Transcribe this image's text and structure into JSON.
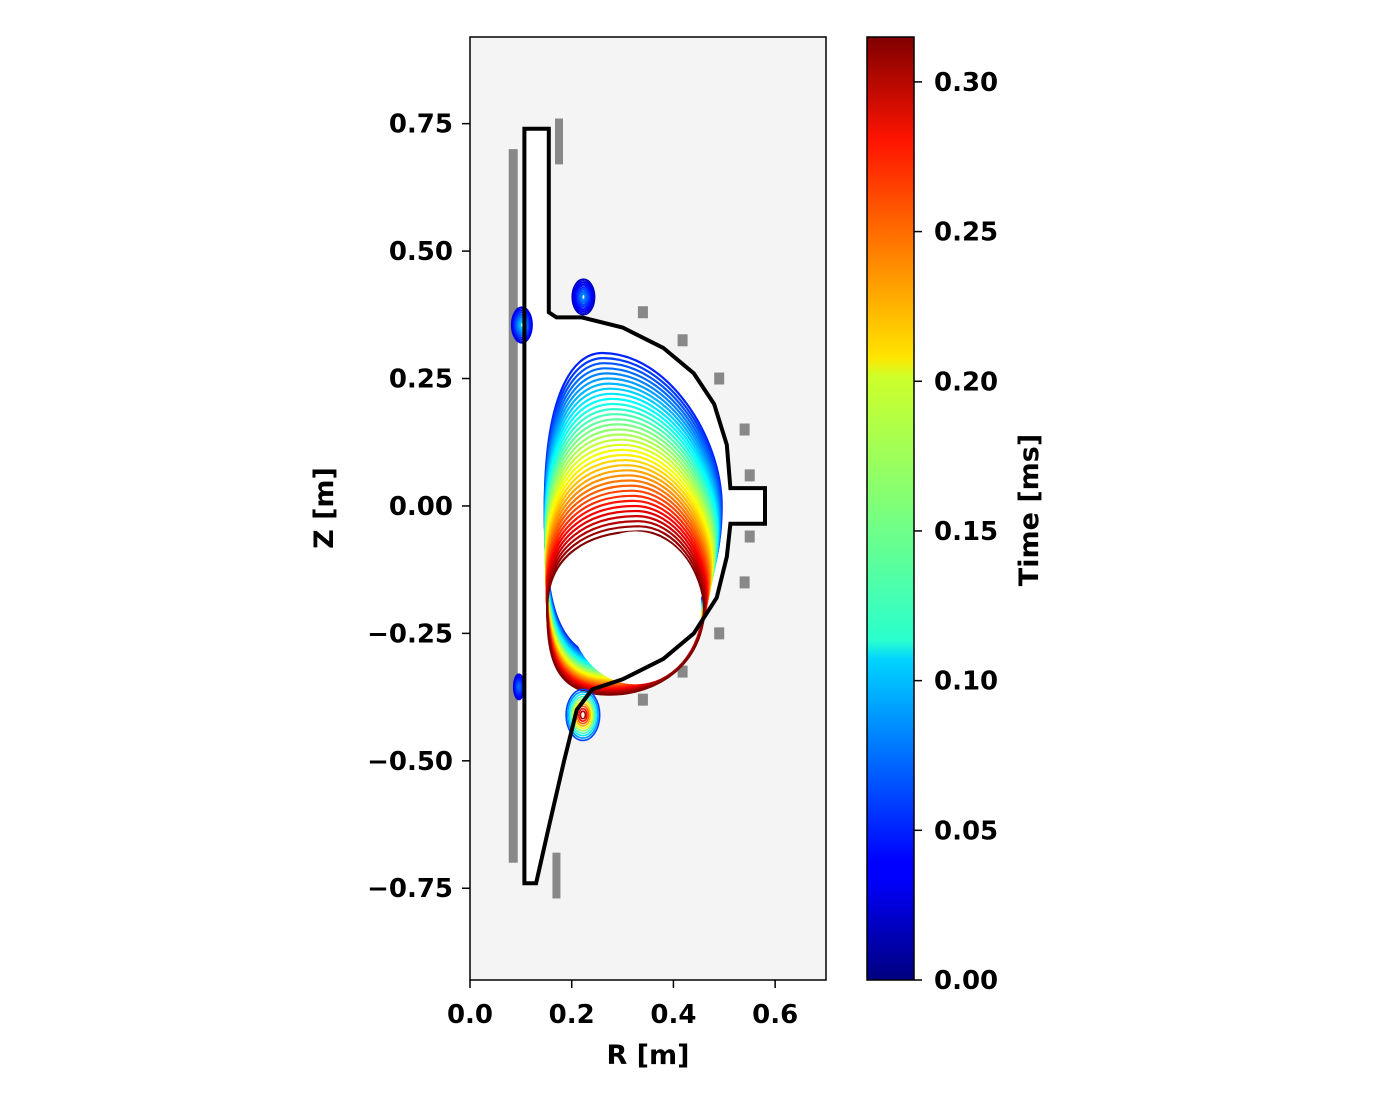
{
  "chart_data": {
    "type": "contour",
    "title": "",
    "xlabel": "R [m]",
    "ylabel": "Z [m]",
    "xlim": [
      0.0,
      0.7
    ],
    "ylim": [
      -0.93,
      0.92
    ],
    "xticks": [
      {
        "value": 0.0,
        "label": "0.0"
      },
      {
        "value": 0.2,
        "label": "0.2"
      },
      {
        "value": 0.4,
        "label": "0.4"
      },
      {
        "value": 0.6,
        "label": "0.6"
      }
    ],
    "yticks": [
      {
        "value": 0.75,
        "label": "0.75"
      },
      {
        "value": 0.5,
        "label": "0.50"
      },
      {
        "value": 0.25,
        "label": "0.25"
      },
      {
        "value": 0.0,
        "label": "0.00"
      },
      {
        "value": -0.25,
        "label": "−0.25"
      },
      {
        "value": -0.5,
        "label": "−0.50"
      },
      {
        "value": -0.75,
        "label": "−0.75"
      }
    ],
    "background_color": "#f4f4f4",
    "colorbar": {
      "label": "Time [ms]",
      "colormap": "jet",
      "range": [
        0.0,
        0.315
      ],
      "ticks": [
        {
          "value": 0.0,
          "label": "0.00"
        },
        {
          "value": 0.05,
          "label": "0.05"
        },
        {
          "value": 0.1,
          "label": "0.10"
        },
        {
          "value": 0.15,
          "label": "0.15"
        },
        {
          "value": 0.2,
          "label": "0.20"
        },
        {
          "value": 0.25,
          "label": "0.25"
        },
        {
          "value": 0.3,
          "label": "0.30"
        }
      ]
    },
    "vessel_wall": [
      [
        0.107,
        -0.74
      ],
      [
        0.107,
        0.74
      ],
      [
        0.155,
        0.74
      ],
      [
        0.155,
        0.38
      ],
      [
        0.17,
        0.37
      ],
      [
        0.22,
        0.37
      ],
      [
        0.3,
        0.35
      ],
      [
        0.38,
        0.31
      ],
      [
        0.44,
        0.26
      ],
      [
        0.48,
        0.2
      ],
      [
        0.505,
        0.12
      ],
      [
        0.512,
        0.035
      ],
      [
        0.58,
        0.035
      ],
      [
        0.58,
        -0.035
      ],
      [
        0.512,
        -0.035
      ],
      [
        0.505,
        -0.1
      ],
      [
        0.485,
        -0.18
      ],
      [
        0.44,
        -0.25
      ],
      [
        0.38,
        -0.3
      ],
      [
        0.3,
        -0.34
      ],
      [
        0.24,
        -0.36
      ],
      [
        0.21,
        -0.4
      ],
      [
        0.185,
        -0.5
      ],
      [
        0.155,
        -0.63
      ],
      [
        0.13,
        -0.74
      ],
      [
        0.107,
        -0.74
      ]
    ],
    "coils": {
      "color": "#888888",
      "central_solenoid": {
        "r": 0.085,
        "z": [
          -0.7,
          0.7
        ]
      },
      "divertor_coils": [
        {
          "r": 0.175,
          "z": [
            0.67,
            0.76
          ]
        },
        {
          "r": 0.17,
          "z": [
            -0.77,
            -0.68
          ]
        }
      ],
      "shaping_coils": [
        {
          "r": 0.34,
          "z": 0.38
        },
        {
          "r": 0.418,
          "z": 0.325
        },
        {
          "r": 0.49,
          "z": 0.25
        },
        {
          "r": 0.54,
          "z": 0.15
        },
        {
          "r": 0.55,
          "z": 0.06
        },
        {
          "r": 0.55,
          "z": -0.06
        },
        {
          "r": 0.54,
          "z": -0.15
        },
        {
          "r": 0.49,
          "z": -0.25
        },
        {
          "r": 0.418,
          "z": -0.325
        },
        {
          "r": 0.34,
          "z": -0.38
        }
      ]
    },
    "plasma_boundary_evolution": {
      "contour_count": 36,
      "t_range_ms": [
        0.05,
        0.315
      ],
      "start_shape": {
        "r_inner": 0.147,
        "r_outer": 0.495,
        "z_top": 0.3,
        "z_bottom": -0.3,
        "r_top": 0.26
      },
      "end_shape": {
        "r_inner": 0.152,
        "r_outer": 0.46,
        "z_top": -0.05,
        "z_bottom": -0.37,
        "r_top": 0.335
      }
    },
    "plasma_hole": {
      "r_center": 0.325,
      "z_center": -0.2,
      "r_radius": 0.13,
      "z_radius": 0.15
    },
    "small_blobs": [
      {
        "r": 0.102,
        "z": 0.355,
        "rr": 0.02,
        "zr": 0.035,
        "t_ms": [
          0.03,
          0.1
        ]
      },
      {
        "r": 0.223,
        "z": 0.41,
        "rr": 0.022,
        "zr": 0.035,
        "t_ms": [
          0.02,
          0.08
        ]
      },
      {
        "r": 0.096,
        "z": -0.355,
        "rr": 0.01,
        "zr": 0.025,
        "t_ms": [
          0.03,
          0.07
        ]
      },
      {
        "r": 0.222,
        "z": -0.41,
        "rr": 0.033,
        "zr": 0.05,
        "t_ms": [
          0.06,
          0.3
        ]
      }
    ]
  }
}
